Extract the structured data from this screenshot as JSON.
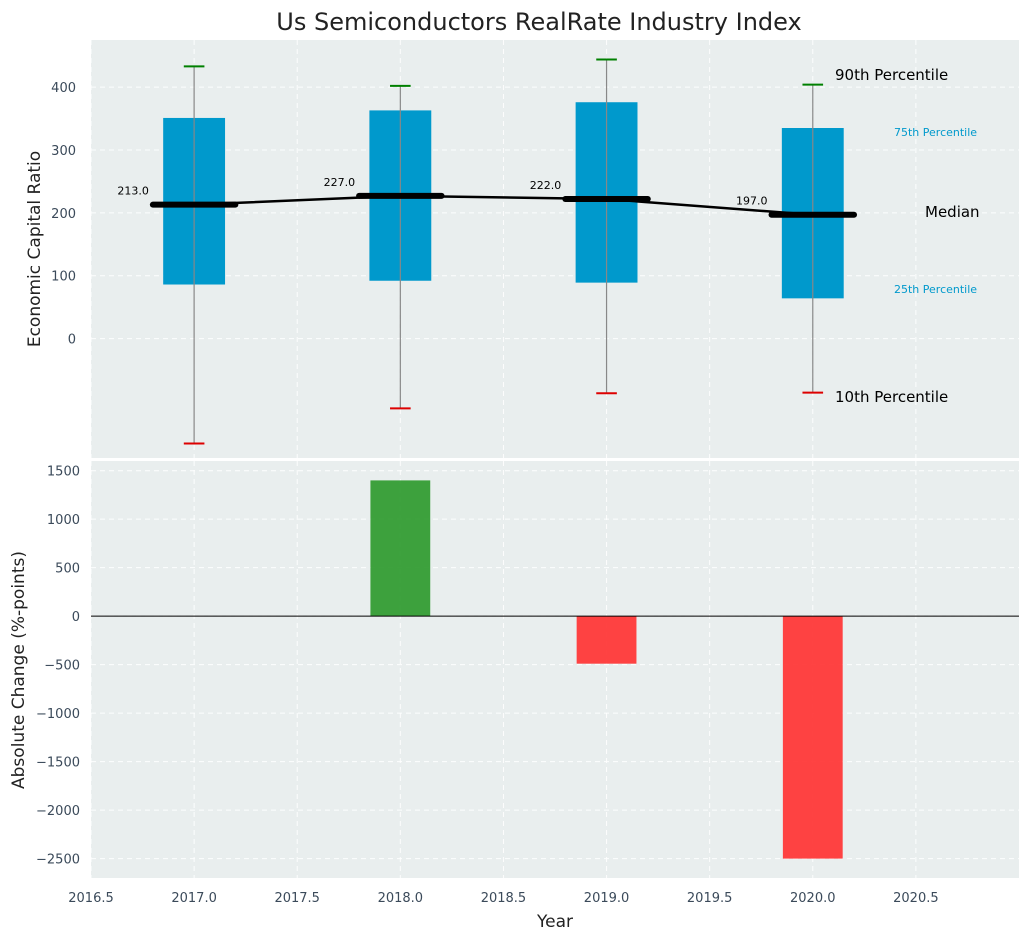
{
  "chart_data": [
    {
      "type": "box",
      "title": "Us Semiconductors RealRate Industry Index",
      "xlabel": "",
      "ylabel": "Economic Capital Ratio",
      "ylim": [
        -190,
        475
      ],
      "xlim": [
        2016.5,
        2021.0
      ],
      "grid": true,
      "yticks": [
        0,
        100,
        200,
        300,
        400
      ],
      "x": [
        2017.0,
        2018.0,
        2019.0,
        2020.0
      ],
      "median": [
        213.0,
        227.0,
        222.0,
        197.0
      ],
      "median_labels": [
        "213.0",
        "227.0",
        "222.0",
        "197.0"
      ],
      "p25": [
        86,
        92,
        89,
        64
      ],
      "p75": [
        351,
        363,
        376,
        335
      ],
      "p10": [
        -167,
        -111,
        -87,
        -86
      ],
      "p90": [
        433,
        402,
        444,
        404
      ],
      "annotations": {
        "p90": "90th Percentile",
        "p75": "75th Percentile",
        "median": "Median",
        "p25": "25th Percentile",
        "p10": "10th Percentile"
      },
      "colors": {
        "box": "#0099cc",
        "median": "#000000",
        "p90_cap": "#008000",
        "p10_cap": "#dd0000",
        "whisker": "#888888"
      }
    },
    {
      "type": "bar",
      "xlabel": "Year",
      "ylabel": "Absolute Change (%-points)",
      "ylim": [
        -2700,
        1600
      ],
      "xlim": [
        2016.5,
        2021.0
      ],
      "grid": true,
      "yticks": [
        -2500,
        -2000,
        -1500,
        -1000,
        -500,
        0,
        500,
        1000,
        1500
      ],
      "ytick_labels": [
        "−2500",
        "−2000",
        "−1500",
        "−1000",
        "−500",
        "0",
        "500",
        "1000",
        "1500"
      ],
      "xticks": [
        2016.5,
        2017.0,
        2017.5,
        2018.0,
        2018.5,
        2019.0,
        2019.5,
        2020.0,
        2020.5
      ],
      "xtick_labels": [
        "2016.5",
        "2017.0",
        "2017.5",
        "2018.0",
        "2018.5",
        "2019.0",
        "2019.5",
        "2020.0",
        "2020.5"
      ],
      "x": [
        2018.0,
        2019.0,
        2020.0
      ],
      "values": [
        1400,
        -490,
        -2500
      ],
      "colors": {
        "positive": "#2e9a2e",
        "negative": "#ff3333"
      }
    }
  ]
}
